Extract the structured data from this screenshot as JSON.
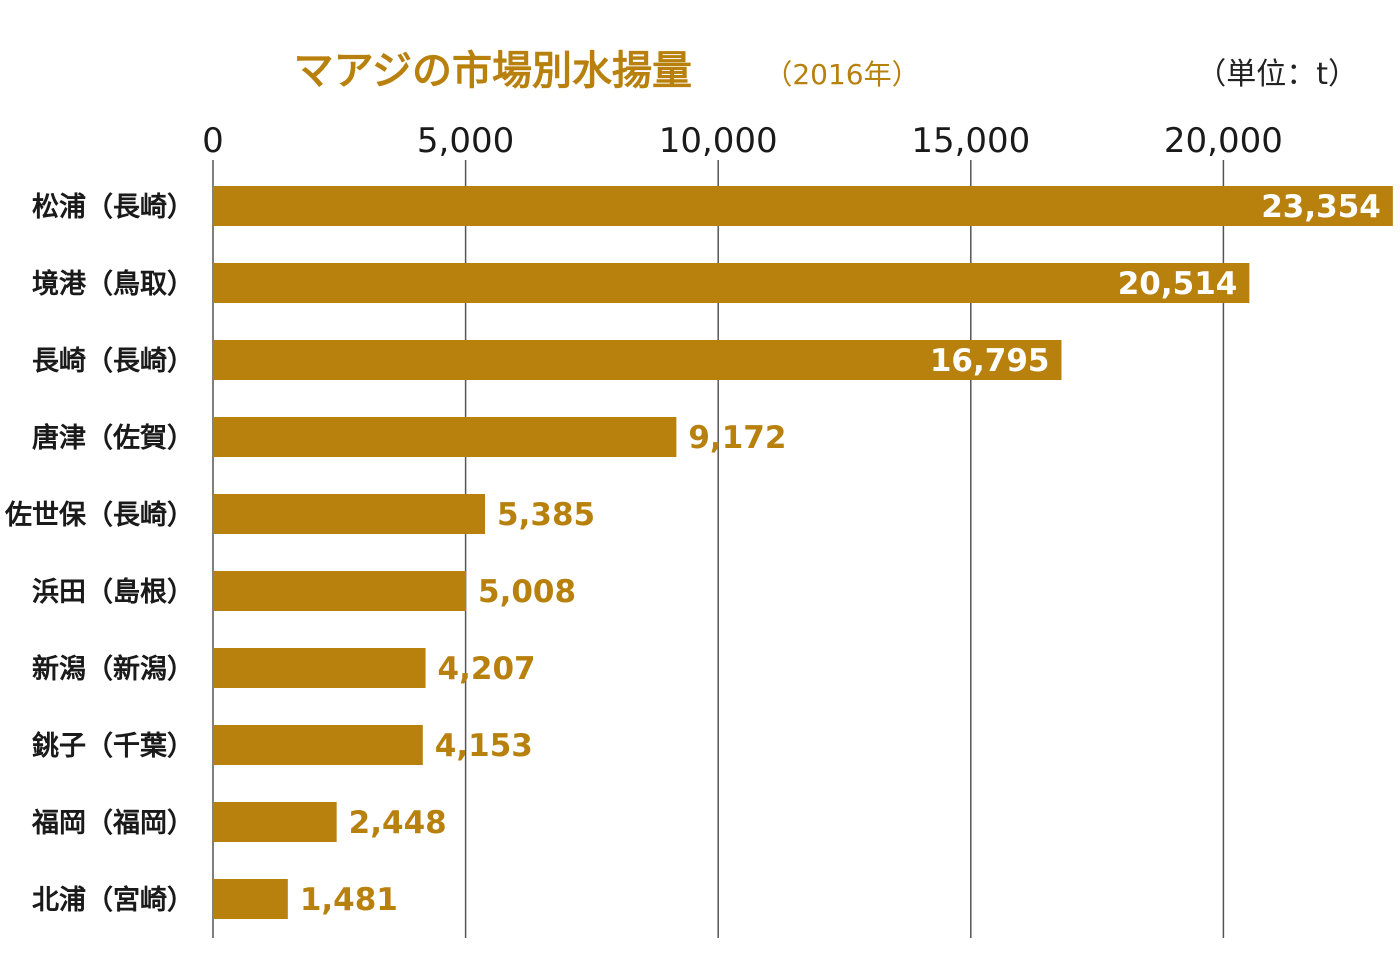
{
  "colors": {
    "accent": "#b8800c",
    "grid": "#555555",
    "text": "#1a1a1a",
    "inside_label": "#ffffff"
  },
  "chart_data": {
    "type": "bar",
    "orientation": "horizontal",
    "title": "マアジの市場別水揚量",
    "subtitle": "（2016年）",
    "unit_label": "（単位：t）",
    "xlabel": "",
    "ylabel": "",
    "xlim": [
      0,
      23354
    ],
    "x_ticks": [
      0,
      5000,
      10000,
      15000,
      20000
    ],
    "x_tick_labels": [
      "0",
      "5,000",
      "10,000",
      "15,000",
      "20,000"
    ],
    "grid": true,
    "categories": [
      "松浦（長崎）",
      "境港（鳥取）",
      "長崎（長崎）",
      "唐津（佐賀）",
      "佐世保（長崎）",
      "浜田（島根）",
      "新潟（新潟）",
      "銚子（千葉）",
      "福岡（福岡）",
      "北浦（宮崎）"
    ],
    "values": [
      23354,
      20514,
      16795,
      9172,
      5385,
      5008,
      4207,
      4153,
      2448,
      1481
    ],
    "value_labels": [
      "23,354",
      "20,514",
      "16,795",
      "9,172",
      "5,385",
      "5,008",
      "4,207",
      "4,153",
      "2,448",
      "1,481"
    ]
  }
}
